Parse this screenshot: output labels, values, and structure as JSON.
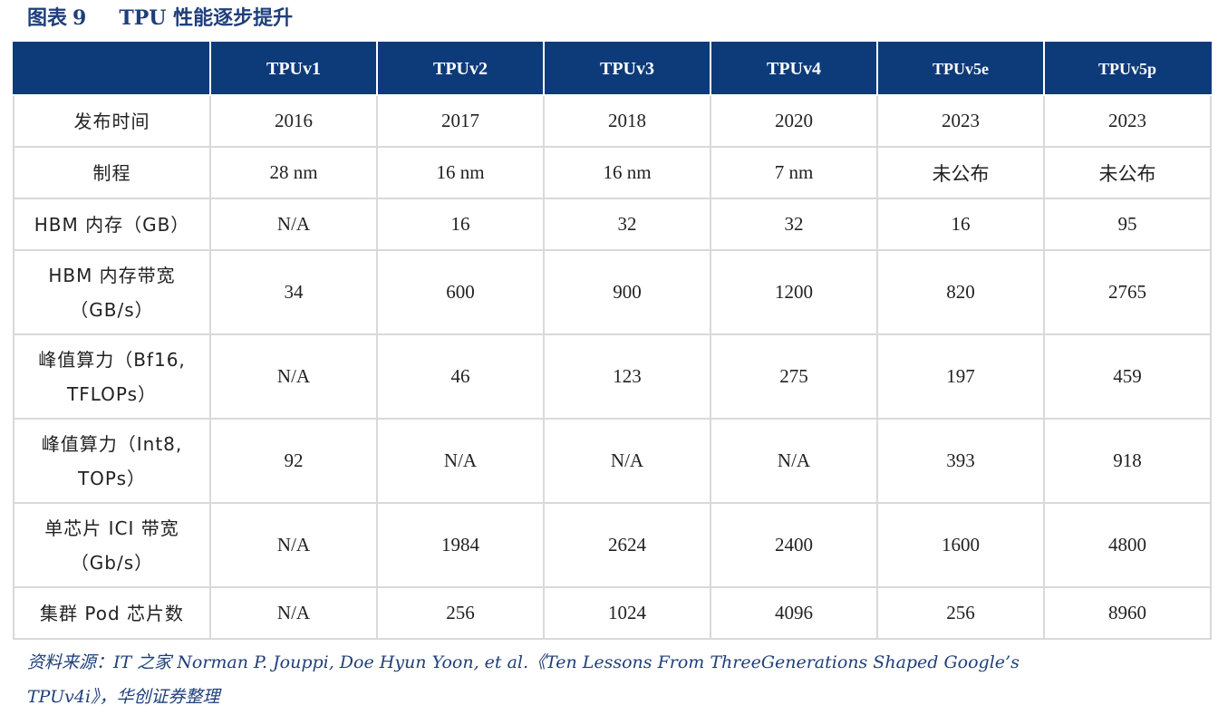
{
  "figure": {
    "label": "图表",
    "number": "9",
    "title": "TPU 性能逐步提升"
  },
  "table": {
    "corner": "",
    "columns": [
      "TPUv1",
      "TPUv2",
      "TPUv3",
      "TPUv4",
      "TPUv5e",
      "TPUv5p"
    ],
    "rows": [
      {
        "label": [
          "发布时间"
        ],
        "values": [
          "2016",
          "2017",
          "2018",
          "2020",
          "2023",
          "2023"
        ]
      },
      {
        "label": [
          "制程"
        ],
        "values": [
          "28 nm",
          "16 nm",
          "16 nm",
          "7 nm",
          "未公布",
          "未公布"
        ]
      },
      {
        "label": [
          "HBM 内存（GB）"
        ],
        "values": [
          "N/A",
          "16",
          "32",
          "32",
          "16",
          "95"
        ]
      },
      {
        "label": [
          "HBM 内存带宽",
          "（GB/s）"
        ],
        "values": [
          "34",
          "600",
          "900",
          "1200",
          "820",
          "2765"
        ]
      },
      {
        "label": [
          "峰值算力（Bf16,",
          "TFLOPs）"
        ],
        "values": [
          "N/A",
          "46",
          "123",
          "275",
          "197",
          "459"
        ]
      },
      {
        "label": [
          "峰值算力（Int8,",
          "TOPs）"
        ],
        "values": [
          "92",
          "N/A",
          "N/A",
          "N/A",
          "393",
          "918"
        ]
      },
      {
        "label": [
          "单芯片 ICI 带宽",
          "（Gb/s）"
        ],
        "values": [
          "N/A",
          "1984",
          "2624",
          "2400",
          "1600",
          "4800"
        ]
      },
      {
        "label": [
          "集群 Pod 芯片数"
        ],
        "values": [
          "N/A",
          "256",
          "1024",
          "4096",
          "256",
          "8960"
        ]
      }
    ]
  },
  "source": {
    "line1": "资料来源：IT 之家 Norman P. Jouppi, Doe Hyun Yoon, et al.《Ten Lessons From ThreeGenerations Shaped Google’s",
    "line2": "TPUv4i》，华创证券整理"
  },
  "colors": {
    "header_bg": "#0d3b7a",
    "title_color": "#1f3f7a",
    "grid": "#d9d9d9"
  }
}
